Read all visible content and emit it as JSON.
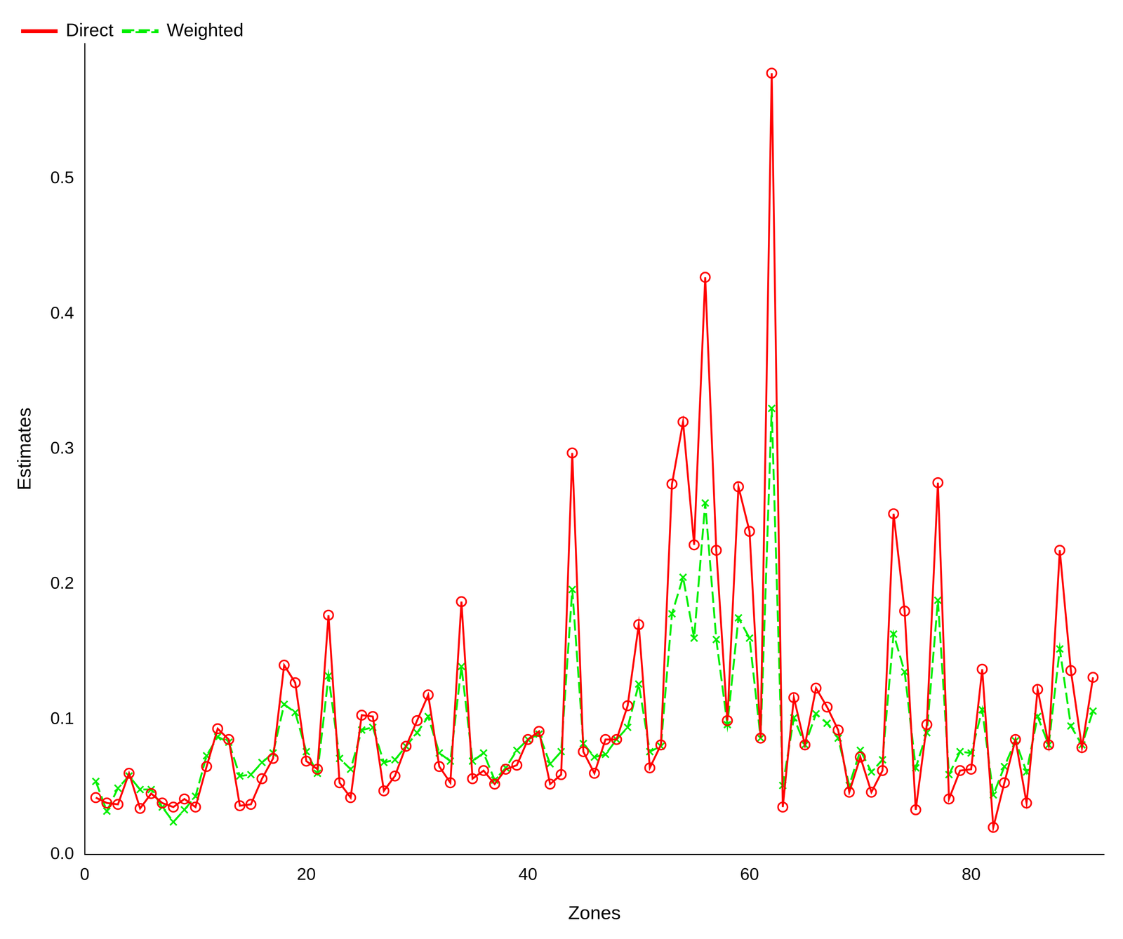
{
  "chart_data": {
    "type": "line",
    "x_label": "Zones",
    "y_label": "Estimates",
    "x": [
      1,
      2,
      3,
      4,
      5,
      6,
      7,
      8,
      9,
      10,
      11,
      12,
      13,
      14,
      15,
      16,
      17,
      18,
      19,
      20,
      21,
      22,
      23,
      24,
      25,
      26,
      27,
      28,
      29,
      30,
      31,
      32,
      33,
      34,
      35,
      36,
      37,
      38,
      39,
      40,
      41,
      42,
      43,
      44,
      45,
      46,
      47,
      48,
      49,
      50,
      51,
      52,
      53,
      54,
      55,
      56,
      57,
      58,
      59,
      60,
      61,
      62,
      63,
      64,
      65,
      66,
      67,
      68,
      69,
      70,
      71,
      72,
      73,
      74,
      75,
      76,
      77,
      78,
      79,
      80,
      81,
      82,
      83,
      84,
      85,
      86,
      87,
      88,
      89,
      90,
      91
    ],
    "series": [
      {
        "name": "Direct",
        "color": "#ff0000",
        "marker": "circle",
        "line_style": "solid",
        "values": [
          0.042,
          0.038,
          0.037,
          0.06,
          0.034,
          0.045,
          0.038,
          0.035,
          0.041,
          0.035,
          0.065,
          0.093,
          0.085,
          0.036,
          0.037,
          0.056,
          0.071,
          0.14,
          0.127,
          0.069,
          0.063,
          0.177,
          0.053,
          0.042,
          0.103,
          0.102,
          0.047,
          0.058,
          0.08,
          0.099,
          0.118,
          0.065,
          0.053,
          0.187,
          0.056,
          0.062,
          0.052,
          0.063,
          0.066,
          0.085,
          0.091,
          0.052,
          0.059,
          0.297,
          0.076,
          0.06,
          0.085,
          0.085,
          0.11,
          0.17,
          0.064,
          0.081,
          0.274,
          0.32,
          0.229,
          0.427,
          0.225,
          0.099,
          0.272,
          0.239,
          0.086,
          0.578,
          0.035,
          0.116,
          0.081,
          0.123,
          0.109,
          0.092,
          0.046,
          0.072,
          0.046,
          0.062,
          0.252,
          0.18,
          0.033,
          0.096,
          0.275,
          0.041,
          0.062,
          0.063,
          0.137,
          0.02,
          0.053,
          0.085,
          0.038,
          0.122,
          0.081,
          0.225,
          0.136,
          0.079,
          0.131
        ]
      },
      {
        "name": "Weighted",
        "color": "#00ee00",
        "marker": "x",
        "line_style": "dashed",
        "values": [
          0.054,
          0.032,
          0.049,
          0.058,
          0.048,
          0.048,
          0.035,
          0.024,
          0.033,
          0.043,
          0.073,
          0.087,
          0.083,
          0.058,
          0.059,
          0.068,
          0.075,
          0.111,
          0.105,
          0.076,
          0.06,
          0.132,
          0.071,
          0.063,
          0.092,
          0.094,
          0.068,
          0.07,
          0.08,
          0.09,
          0.102,
          0.075,
          0.069,
          0.139,
          0.069,
          0.075,
          0.055,
          0.064,
          0.077,
          0.085,
          0.089,
          0.067,
          0.076,
          0.196,
          0.082,
          0.072,
          0.074,
          0.085,
          0.094,
          0.126,
          0.076,
          0.08,
          0.178,
          0.205,
          0.16,
          0.26,
          0.159,
          0.096,
          0.175,
          0.16,
          0.086,
          0.33,
          0.051,
          0.101,
          0.081,
          0.104,
          0.097,
          0.086,
          0.051,
          0.077,
          0.061,
          0.07,
          0.163,
          0.135,
          0.064,
          0.09,
          0.188,
          0.059,
          0.076,
          0.075,
          0.107,
          0.044,
          0.065,
          0.084,
          0.061,
          0.102,
          0.081,
          0.152,
          0.095,
          0.081,
          0.106
        ]
      }
    ],
    "xlim": [
      0,
      92
    ],
    "xticks": [
      0,
      20,
      40,
      60,
      80
    ],
    "ylim": [
      0,
      0.6
    ],
    "yticks": [
      {
        "value": 0,
        "label": "0.0"
      },
      0.1,
      0.2,
      0.3,
      0.4,
      0.5
    ],
    "grid": false,
    "legend": "top-left"
  }
}
